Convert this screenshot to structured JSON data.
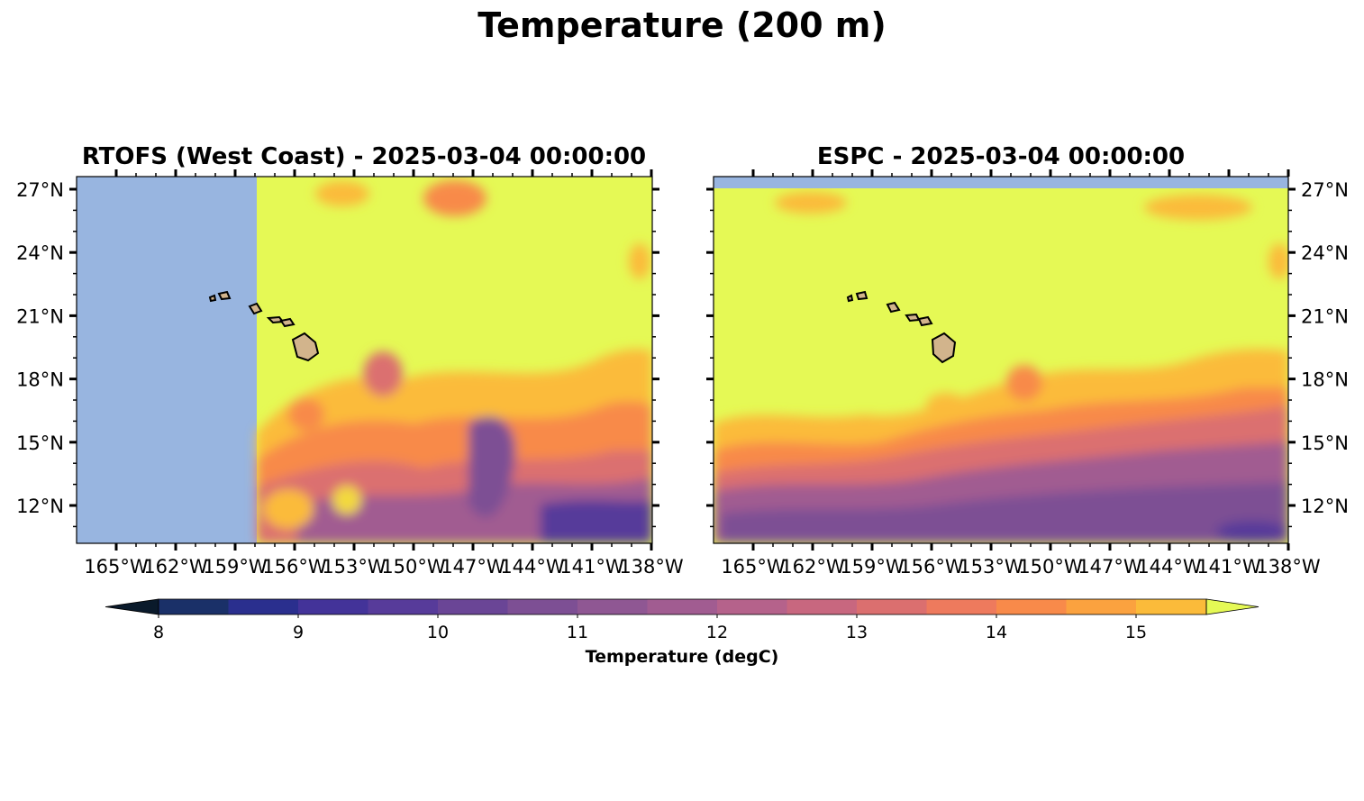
{
  "figure": {
    "title": "Temperature (200 m)"
  },
  "panels": [
    {
      "title": "RTOFS (West Coast) - 2025-03-04 00:00:00",
      "lat_ticks": [
        "27°N",
        "24°N",
        "21°N",
        "18°N",
        "15°N",
        "12°N"
      ],
      "lon_ticks": [
        "165°W",
        "162°W",
        "159°W",
        "156°W",
        "153°W",
        "150°W",
        "147°W",
        "144°W",
        "141°W",
        "138°W"
      ],
      "lat_label_side": "left"
    },
    {
      "title": "ESPC - 2025-03-04 00:00:00",
      "lat_ticks": [
        "27°N",
        "24°N",
        "21°N",
        "18°N",
        "15°N",
        "12°N"
      ],
      "lon_ticks": [
        "165°W",
        "162°W",
        "159°W",
        "156°W",
        "153°W",
        "150°W",
        "147°W",
        "144°W",
        "141°W",
        "138°W"
      ],
      "lat_label_side": "right"
    }
  ],
  "colorbar": {
    "label": "Temperature (degC)",
    "tick_labels": [
      "8",
      "9",
      "10",
      "11",
      "12",
      "13",
      "14",
      "15"
    ],
    "extend": "both",
    "colors": [
      "#0d2840",
      "#1a3068",
      "#2a2f8e",
      "#433399",
      "#573b9a",
      "#6a4596",
      "#7d4f94",
      "#8f5793",
      "#a15c91",
      "#b5628b",
      "#c8677f",
      "#db6f6f",
      "#ee7a5d",
      "#f88a4a",
      "#fba23f",
      "#fbbb3a",
      "#f3d93e",
      "#e5f955"
    ],
    "under_color": "#0a1a2b",
    "over_color": "#e5f955"
  },
  "chart_data": {
    "type": "heatmap",
    "title": "Temperature (200 m)",
    "subplots": [
      "RTOFS (West Coast) - 2025-03-04 00:00:00",
      "ESPC - 2025-03-04 00:00:00"
    ],
    "xlabel": "",
    "ylabel": "",
    "colorbar_label": "Temperature (degC)",
    "value_range": [
      8,
      15
    ],
    "lon_range": [
      -168,
      -138
    ],
    "lat_range": [
      9.7,
      27.6
    ],
    "colors": {
      "land": "#d2b48c",
      "no_data": "#98b5e0"
    }
  }
}
